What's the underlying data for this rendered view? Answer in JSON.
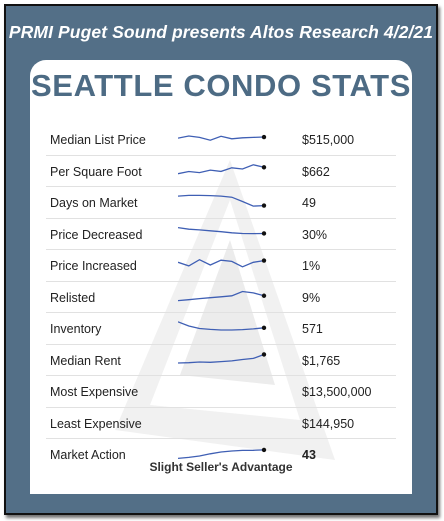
{
  "header": {
    "text": "PRMI Puget Sound presents Altos Research 4/2/21"
  },
  "card": {
    "title": "SEATTLE CONDO STATS",
    "footer": "Slight Seller's Advantage"
  },
  "colors": {
    "frame": "#536f87",
    "title": "#4d6b84",
    "sparkline": "#3f5fb4"
  },
  "stats": [
    {
      "label": "Median List Price",
      "value": "$515,000",
      "trend": [
        5,
        6.2,
        5.4,
        3.8,
        6,
        4.6,
        5.2,
        5.4,
        5.6
      ]
    },
    {
      "label": "Per Square Foot",
      "value": "$662",
      "trend": [
        3,
        4.2,
        3.6,
        5,
        4.3,
        6.3,
        5.6,
        8,
        6.6
      ]
    },
    {
      "label": "Days on Market",
      "value": "49",
      "trend": [
        7.8,
        8.2,
        8.2,
        8.1,
        7.8,
        7.2,
        4.8,
        2.2,
        2.5
      ]
    },
    {
      "label": "Price Decreased",
      "value": "30%",
      "trend": [
        8.1,
        7.2,
        6.8,
        6.3,
        5.8,
        5.2,
        4.8,
        4.7,
        4.8
      ]
    },
    {
      "label": "Price Increased",
      "value": "1%",
      "trend": [
        6,
        4,
        7.5,
        4.5,
        7.2,
        6.5,
        3.5,
        6,
        7
      ]
    },
    {
      "label": "Relisted",
      "value": "9%",
      "trend": [
        2.5,
        3,
        3.6,
        4.1,
        4.6,
        5.2,
        7.6,
        6.8,
        5.2
      ]
    },
    {
      "label": "Inventory",
      "value": "571",
      "trend": [
        8,
        5.6,
        4.2,
        3.7,
        3.4,
        3.4,
        3.6,
        4,
        4.6
      ]
    },
    {
      "label": "Median Rent",
      "value": "$1,765",
      "trend": [
        2.8,
        3,
        3.4,
        3.2,
        3.6,
        4,
        4.8,
        5.4,
        7.6
      ]
    },
    {
      "label": "Most Expensive",
      "value": "$13,500,000",
      "trend": null
    },
    {
      "label": "Least Expensive",
      "value": "$144,950",
      "trend": null
    },
    {
      "label": "Market Action",
      "value": "43",
      "value_bold": true,
      "trend": [
        2,
        2.6,
        3.4,
        4.6,
        5.6,
        6.2,
        6.5,
        6.6,
        6.8
      ]
    }
  ]
}
